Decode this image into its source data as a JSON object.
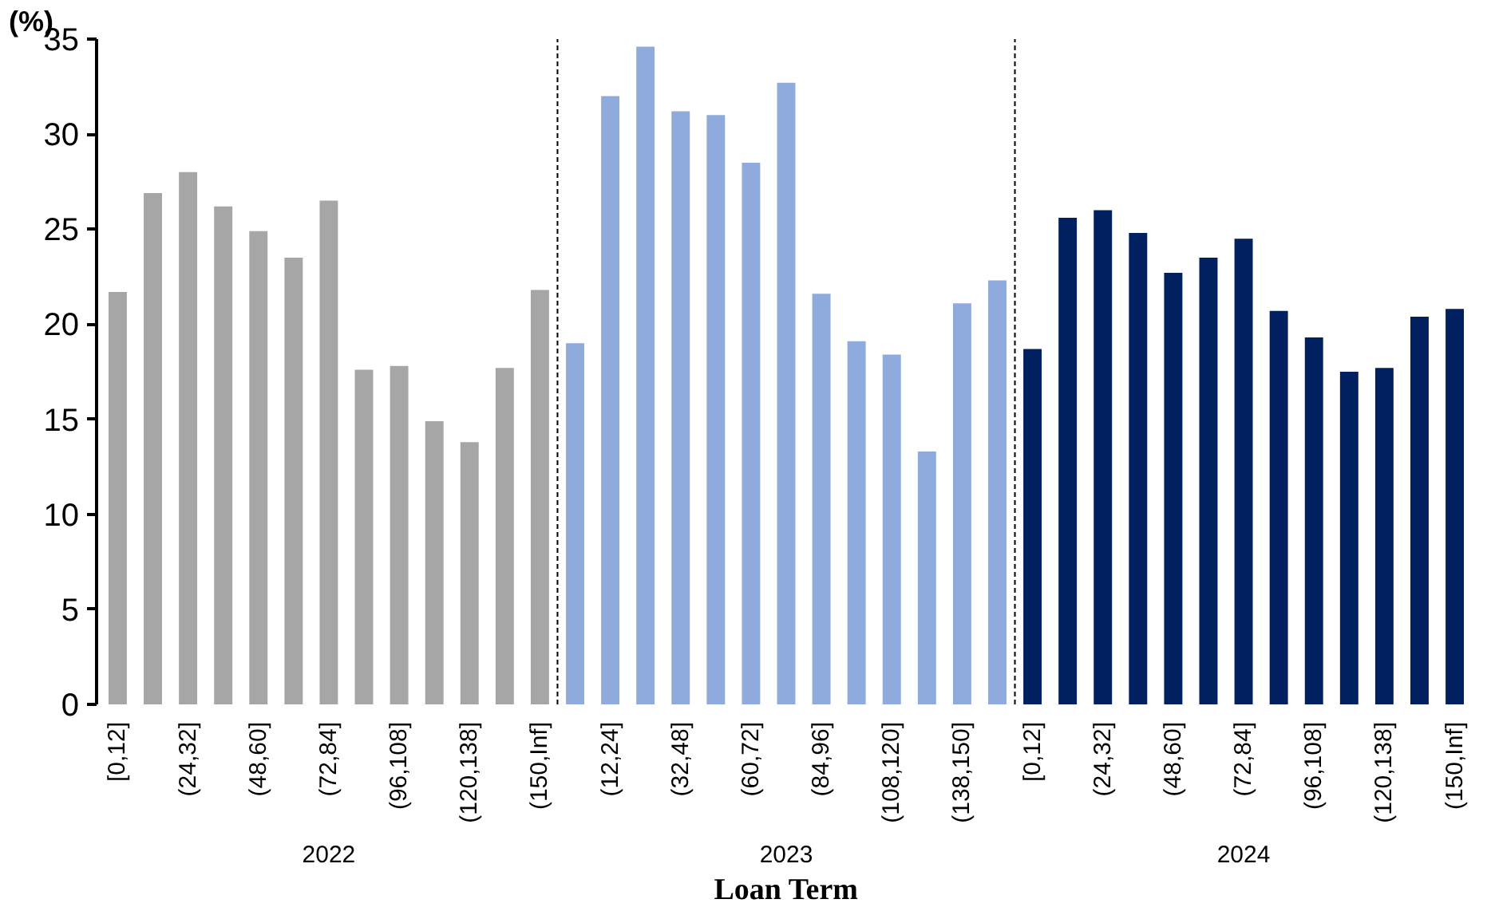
{
  "chart_data": {
    "type": "bar",
    "xlabel": "Loan Term",
    "ylabel": "(%)",
    "categories": [
      "[0,12]",
      null,
      "(24,32]",
      null,
      "(48,60]",
      null,
      "(72,84]",
      null,
      "(96,108]",
      null,
      "(120,138]",
      null,
      "(150,Inf]",
      null,
      "(12,24]",
      null,
      "(32,48]",
      null,
      "(60,72]",
      null,
      "(84,96]",
      null,
      "(108,120]",
      null,
      "(138,150]",
      null,
      "[0,12]",
      null,
      "(24,32]",
      null,
      "(48,60]",
      null,
      "(72,84]",
      null,
      "(96,108]",
      null,
      "(120,138]",
      null,
      "(150,Inf]"
    ],
    "values": [
      21.7,
      26.9,
      28.0,
      26.2,
      24.9,
      23.5,
      26.5,
      17.6,
      17.8,
      14.9,
      13.8,
      17.7,
      21.8,
      19.0,
      32.0,
      34.6,
      31.2,
      31.0,
      28.5,
      32.7,
      21.6,
      19.1,
      18.4,
      13.3,
      21.1,
      22.3,
      18.7,
      25.6,
      26.0,
      24.8,
      22.7,
      23.5,
      24.5,
      20.7,
      19.3,
      17.5,
      17.7,
      20.4,
      20.8
    ],
    "colors": [
      "#a6a6a6",
      "#a6a6a6",
      "#a6a6a6",
      "#a6a6a6",
      "#a6a6a6",
      "#a6a6a6",
      "#a6a6a6",
      "#a6a6a6",
      "#a6a6a6",
      "#a6a6a6",
      "#a6a6a6",
      "#a6a6a6",
      "#a6a6a6",
      "#8faadc",
      "#8faadc",
      "#8faadc",
      "#8faadc",
      "#8faadc",
      "#8faadc",
      "#8faadc",
      "#8faadc",
      "#8faadc",
      "#8faadc",
      "#8faadc",
      "#8faadc",
      "#8faadc",
      "#002060",
      "#002060",
      "#002060",
      "#002060",
      "#002060",
      "#002060",
      "#002060",
      "#002060",
      "#002060",
      "#002060",
      "#002060",
      "#002060",
      "#002060"
    ],
    "annotations": [
      "2022",
      "2023",
      "2024"
    ],
    "ylim": [
      0,
      35
    ],
    "yticks": [
      0,
      5,
      10,
      15,
      20,
      25,
      30,
      35
    ],
    "grid": false
  }
}
